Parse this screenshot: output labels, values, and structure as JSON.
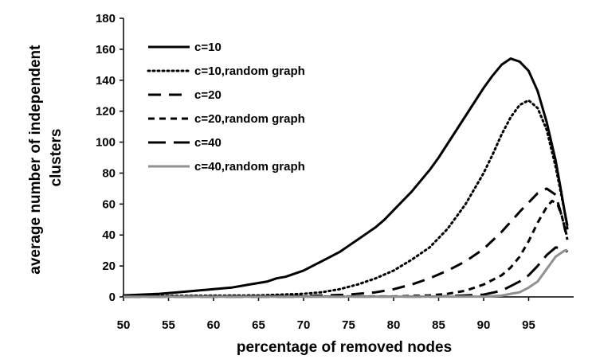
{
  "chart_data": {
    "type": "line",
    "title": "",
    "xlabel": "percentage of removed nodes",
    "ylabel_lines": [
      "average number of independent",
      "clusters"
    ],
    "xlim": [
      50,
      100
    ],
    "ylim": [
      0,
      180
    ],
    "xticks": [
      50,
      55,
      60,
      65,
      70,
      75,
      80,
      85,
      90,
      95
    ],
    "yticks": [
      0,
      20,
      40,
      60,
      80,
      100,
      120,
      140,
      160,
      180
    ],
    "grid": false,
    "legend_position": "top-left",
    "series": [
      {
        "name": "c=10",
        "style": "solid",
        "color": "#000000",
        "points": [
          [
            50,
            1
          ],
          [
            52,
            1.5
          ],
          [
            54,
            2
          ],
          [
            56,
            3
          ],
          [
            58,
            4
          ],
          [
            60,
            5
          ],
          [
            62,
            6
          ],
          [
            64,
            8
          ],
          [
            66,
            10
          ],
          [
            67,
            12
          ],
          [
            68,
            13
          ],
          [
            69,
            15
          ],
          [
            70,
            17
          ],
          [
            71,
            20
          ],
          [
            72,
            23
          ],
          [
            73,
            26
          ],
          [
            74,
            29
          ],
          [
            75,
            33
          ],
          [
            76,
            37
          ],
          [
            77,
            41
          ],
          [
            78,
            45
          ],
          [
            79,
            50
          ],
          [
            80,
            56
          ],
          [
            81,
            62
          ],
          [
            82,
            68
          ],
          [
            83,
            75
          ],
          [
            84,
            82
          ],
          [
            85,
            90
          ],
          [
            86,
            99
          ],
          [
            87,
            108
          ],
          [
            88,
            117
          ],
          [
            89,
            126
          ],
          [
            90,
            135
          ],
          [
            91,
            143
          ],
          [
            92,
            150
          ],
          [
            93,
            154
          ],
          [
            94,
            152
          ],
          [
            95,
            146
          ],
          [
            96,
            133
          ],
          [
            97,
            113
          ],
          [
            98,
            88
          ],
          [
            98.5,
            72
          ],
          [
            99,
            55
          ],
          [
            99.3,
            46
          ]
        ]
      },
      {
        "name": "c=10,random graph",
        "style": "dotted",
        "color": "#000000",
        "points": [
          [
            50,
            0.5
          ],
          [
            60,
            0.8
          ],
          [
            65,
            1
          ],
          [
            70,
            2
          ],
          [
            72,
            3
          ],
          [
            74,
            5
          ],
          [
            76,
            8
          ],
          [
            78,
            12
          ],
          [
            80,
            17
          ],
          [
            82,
            24
          ],
          [
            84,
            32
          ],
          [
            86,
            44
          ],
          [
            88,
            60
          ],
          [
            90,
            80
          ],
          [
            91,
            92
          ],
          [
            92,
            105
          ],
          [
            93,
            116
          ],
          [
            94,
            124
          ],
          [
            95,
            127
          ],
          [
            96,
            122
          ],
          [
            97,
            108
          ],
          [
            98,
            84
          ],
          [
            99,
            55
          ],
          [
            99.3,
            44
          ]
        ]
      },
      {
        "name": "c=20",
        "style": "dashed",
        "color": "#000000",
        "points": [
          [
            50,
            0.3
          ],
          [
            70,
            0.5
          ],
          [
            75,
            1.5
          ],
          [
            78,
            3
          ],
          [
            80,
            5
          ],
          [
            82,
            8
          ],
          [
            84,
            12
          ],
          [
            86,
            17
          ],
          [
            88,
            23
          ],
          [
            90,
            31
          ],
          [
            92,
            42
          ],
          [
            94,
            55
          ],
          [
            96,
            67
          ],
          [
            97,
            70
          ],
          [
            98,
            66
          ],
          [
            98.5,
            56
          ],
          [
            99,
            45
          ],
          [
            99.3,
            38
          ]
        ]
      },
      {
        "name": "c=20,random graph",
        "style": "short-dashed",
        "color": "#000000",
        "points": [
          [
            50,
            0.2
          ],
          [
            80,
            0.3
          ],
          [
            84,
            1
          ],
          [
            86,
            2
          ],
          [
            88,
            4
          ],
          [
            90,
            8
          ],
          [
            92,
            14
          ],
          [
            93,
            19
          ],
          [
            94,
            26
          ],
          [
            95,
            36
          ],
          [
            96,
            48
          ],
          [
            97,
            58
          ],
          [
            97.6,
            62
          ],
          [
            98.2,
            60
          ],
          [
            98.7,
            52
          ],
          [
            99.1,
            42
          ],
          [
            99.3,
            37
          ]
        ]
      },
      {
        "name": "c=40",
        "style": "long-dashed",
        "color": "#000000",
        "points": [
          [
            50,
            0.1
          ],
          [
            85,
            0.2
          ],
          [
            90,
            1.5
          ],
          [
            92,
            4
          ],
          [
            93,
            7
          ],
          [
            94,
            10
          ],
          [
            95,
            14
          ],
          [
            96,
            20
          ],
          [
            97,
            27
          ],
          [
            98,
            32
          ],
          [
            99,
            31
          ],
          [
            99.3,
            29
          ]
        ]
      },
      {
        "name": "c=40,random graph",
        "style": "solid",
        "color": "#909090",
        "points": [
          [
            50,
            0.1
          ],
          [
            90,
            0.2
          ],
          [
            92,
            0.8
          ],
          [
            93,
            2
          ],
          [
            94,
            3
          ],
          [
            95,
            6
          ],
          [
            96,
            10
          ],
          [
            97,
            18
          ],
          [
            98,
            26
          ],
          [
            99,
            30
          ],
          [
            99.3,
            30
          ]
        ]
      }
    ]
  }
}
